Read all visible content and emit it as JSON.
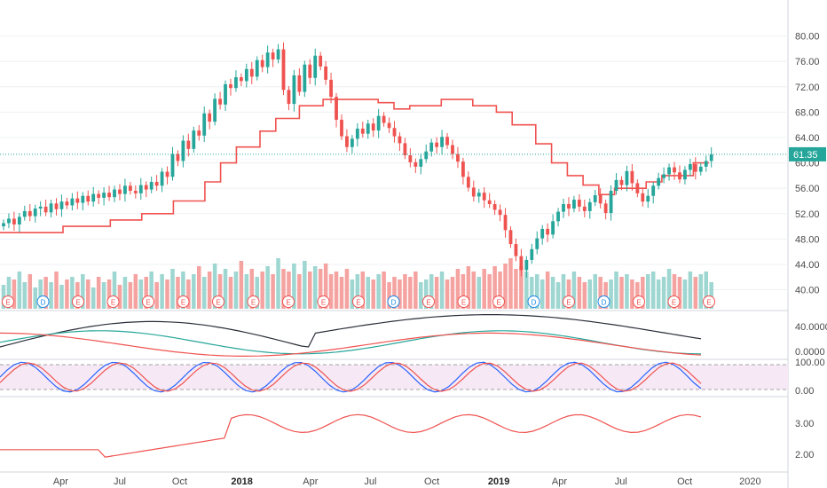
{
  "chart_data": [
    {
      "type": "candlestick",
      "panel": "price",
      "price_ylim": [
        37,
        84
      ],
      "price_ticks": [
        "80.00",
        "76.00",
        "72.00",
        "68.00",
        "64.00",
        "60.00",
        "56.00",
        "52.00",
        "48.00",
        "44.00",
        "40.00"
      ],
      "last_price": "61.35",
      "last_price_color": "#26a69a",
      "colors": {
        "up": "#26a69a",
        "down": "#ef5350",
        "vol_up": "#9ed6d1",
        "vol_down": "#f5a3a1"
      },
      "x_range": [
        0,
        100
      ],
      "x_labels": [
        {
          "x": 7.7,
          "text": "Apr"
        },
        {
          "x": 15.2,
          "text": "Jul"
        },
        {
          "x": 22.8,
          "text": "Oct"
        },
        {
          "x": 30.7,
          "text": "2018",
          "bold": true
        },
        {
          "x": 39.4,
          "text": "Apr"
        },
        {
          "x": 47.0,
          "text": "Jul"
        },
        {
          "x": 54.8,
          "text": "Oct"
        },
        {
          "x": 63.3,
          "text": "2019",
          "bold": true
        },
        {
          "x": 71.0,
          "text": "Apr"
        },
        {
          "x": 78.8,
          "text": "Jul"
        },
        {
          "x": 86.9,
          "text": "Oct"
        },
        {
          "x": 95.2,
          "text": "2020"
        }
      ],
      "closes": [
        50.5,
        51.2,
        50.3,
        51.5,
        52.4,
        51.6,
        52.8,
        53.1,
        52.2,
        53.6,
        52.7,
        53.9,
        53.3,
        54.4,
        53.7,
        54.8,
        53.9,
        55.1,
        54.5,
        55.3,
        54.6,
        55.8,
        55.1,
        56.4,
        55.6,
        55.2,
        56.5,
        55.8,
        57.0,
        56.4,
        58.6,
        57.8,
        61.4,
        60.3,
        63.5,
        62.2,
        65.1,
        64.3,
        67.8,
        66.5,
        70.1,
        69.2,
        72.4,
        71.8,
        73.5,
        72.9,
        74.8,
        73.6,
        76.2,
        75.1,
        77.4,
        76.3,
        77.9,
        71.5,
        69.3,
        73.8,
        71.2,
        75.5,
        73.4,
        76.9,
        75.2,
        73.1,
        70.4,
        66.8,
        64.2,
        62.5,
        63.8,
        65.4,
        64.6,
        66.2,
        65.1,
        67.4,
        66.3,
        65.5,
        64.2,
        63.1,
        61.2,
        60.1,
        59.4,
        60.6,
        61.8,
        63.2,
        62.5,
        64.1,
        62.8,
        61.4,
        60.2,
        57.8,
        56.1,
        54.7,
        55.3,
        54.1,
        53.5,
        52.6,
        51.8,
        49.4,
        47.2,
        45.3,
        43.1,
        44.7,
        46.4,
        48.1,
        49.6,
        48.7,
        50.8,
        52.3,
        53.5,
        52.8,
        54.2,
        53.1,
        52.4,
        53.8,
        54.9,
        53.6,
        52.1,
        55.6,
        57.3,
        56.5,
        58.7,
        56.8,
        55.2,
        53.9,
        54.8,
        56.4,
        57.6,
        58.2,
        59.3,
        58.5,
        57.4,
        58.9,
        59.8,
        58.6,
        59.4,
        60.3,
        61.35
      ],
      "volumes": [
        0.45,
        0.6,
        0.55,
        0.7,
        0.5,
        0.65,
        0.4,
        0.55,
        0.6,
        0.5,
        0.7,
        0.45,
        0.55,
        0.6,
        0.5,
        0.65,
        0.55,
        0.4,
        0.6,
        0.5,
        0.55,
        0.7,
        0.45,
        0.6,
        0.5,
        0.65,
        0.55,
        0.6,
        0.7,
        0.5,
        0.65,
        0.55,
        0.75,
        0.6,
        0.7,
        0.55,
        0.65,
        0.8,
        0.6,
        0.7,
        0.85,
        0.65,
        0.75,
        0.6,
        0.7,
        0.9,
        0.65,
        0.75,
        0.6,
        0.7,
        0.8,
        0.65,
        0.95,
        0.75,
        0.7,
        0.85,
        0.65,
        0.9,
        0.7,
        0.8,
        0.75,
        0.85,
        0.65,
        0.7,
        0.6,
        0.75,
        0.55,
        0.65,
        0.7,
        0.6,
        0.55,
        0.65,
        0.7,
        0.5,
        0.6,
        0.55,
        0.65,
        0.6,
        0.7,
        0.5,
        0.55,
        0.65,
        0.6,
        0.7,
        0.55,
        0.6,
        0.75,
        0.65,
        0.8,
        0.7,
        0.6,
        0.75,
        0.65,
        0.8,
        0.7,
        0.85,
        0.95,
        0.75,
        0.8,
        0.7,
        0.6,
        0.65,
        0.55,
        0.7,
        0.6,
        0.5,
        0.65,
        0.55,
        0.7,
        0.6,
        0.5,
        0.55,
        0.65,
        0.6,
        0.5,
        0.55,
        0.7,
        0.6,
        0.65,
        0.55,
        0.5,
        0.6,
        0.65,
        0.7,
        0.55,
        0.6,
        0.75,
        0.65,
        0.6,
        0.55,
        0.7,
        0.6,
        0.65,
        0.7,
        0.5
      ],
      "bands": [
        {
          "name": "",
          "points": [
            [
              0,
              49
            ],
            [
              8,
              49
            ],
            [
              8,
              50
            ],
            [
              14,
              50
            ],
            [
              14,
              51
            ],
            [
              18,
              51
            ],
            [
              18,
              52
            ],
            [
              22,
              52
            ],
            [
              22,
              54
            ],
            [
              26,
              54
            ],
            [
              26,
              57
            ],
            [
              28,
              57
            ],
            [
              28,
              60
            ],
            [
              30,
              60
            ],
            [
              30,
              62.5
            ],
            [
              33,
              62.5
            ],
            [
              33,
              65
            ],
            [
              35,
              65
            ],
            [
              35,
              67
            ],
            [
              38,
              67
            ],
            [
              38,
              69
            ],
            [
              41,
              69
            ],
            [
              41,
              70
            ],
            [
              48,
              70
            ],
            [
              48,
              69.5
            ],
            [
              50,
              69.5
            ],
            [
              50,
              68.5
            ],
            [
              52,
              68.5
            ],
            [
              52,
              69
            ],
            [
              56,
              69
            ],
            [
              56,
              70
            ],
            [
              60,
              70
            ],
            [
              60,
              69
            ],
            [
              63,
              69
            ],
            [
              63,
              68
            ],
            [
              65,
              68
            ],
            [
              65,
              66
            ],
            [
              68,
              66
            ],
            [
              68,
              63
            ],
            [
              70,
              63
            ],
            [
              70,
              60
            ],
            [
              72,
              60
            ],
            [
              72,
              58
            ],
            [
              74,
              58
            ],
            [
              74,
              56.5
            ],
            [
              76,
              56.5
            ],
            [
              76,
              55
            ],
            [
              78,
              55
            ],
            [
              78,
              56
            ],
            [
              82,
              56
            ],
            [
              82,
              57
            ],
            [
              84,
              57
            ],
            [
              84,
              58
            ],
            [
              88,
              58
            ],
            [
              88,
              60
            ],
            [
              90,
              60
            ]
          ]
        }
      ],
      "indicator_ticks": [
        "40.0000",
        "0.0000"
      ],
      "stoch_ticks": [
        "100.00",
        "0.00"
      ],
      "atr_ticks": [
        "3.00",
        "2.00"
      ]
    }
  ]
}
